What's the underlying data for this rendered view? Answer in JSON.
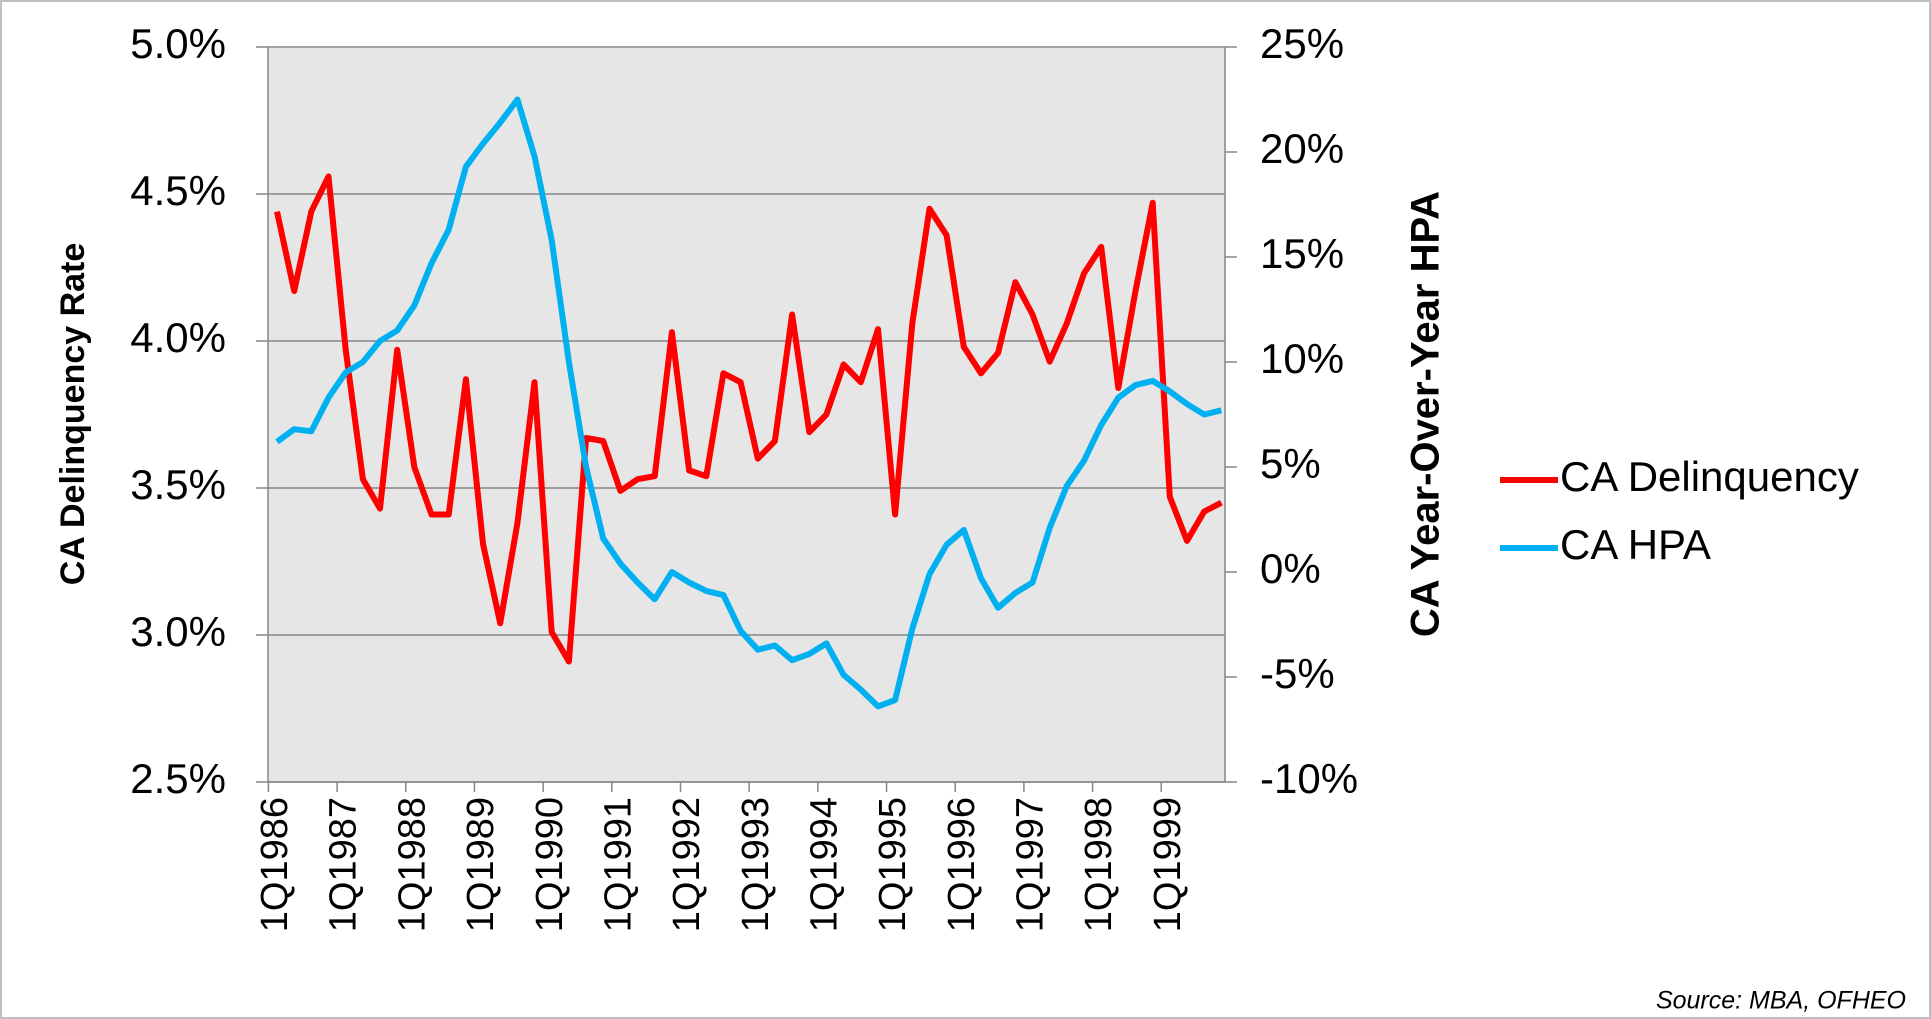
{
  "chart_data": {
    "type": "line",
    "y_label": "CA Delinquency Rate",
    "y2_label": "CA Year-Over-Year HPA",
    "source": "Source: MBA, OFHEO",
    "categories": [
      "1Q1986",
      null,
      null,
      null,
      "1Q1987",
      null,
      null,
      null,
      "1Q1988",
      null,
      null,
      null,
      "1Q1989",
      null,
      null,
      null,
      "1Q1990",
      null,
      null,
      null,
      "1Q1991",
      null,
      null,
      null,
      "1Q1992",
      null,
      null,
      null,
      "1Q1993",
      null,
      null,
      null,
      "1Q1994",
      null,
      null,
      null,
      "1Q1995",
      null,
      null,
      null,
      "1Q1996",
      null,
      null,
      null,
      "1Q1997",
      null,
      null,
      null,
      "1Q1998",
      null,
      null,
      null,
      "1Q1999",
      null,
      null,
      null
    ],
    "ylim": [
      2.5,
      5.0
    ],
    "yticks": [
      {
        "value": 2.5,
        "label": "2.5%"
      },
      {
        "value": 3.0,
        "label": "3.0%"
      },
      {
        "value": 3.5,
        "label": "3.5%"
      },
      {
        "value": 4.0,
        "label": "4.0%"
      },
      {
        "value": 4.5,
        "label": "4.5%"
      },
      {
        "value": 5.0,
        "label": "5.0%"
      }
    ],
    "y2lim": [
      -10,
      25
    ],
    "y2ticks": [
      {
        "value": -10,
        "label": "-10%"
      },
      {
        "value": -5,
        "label": "-5%"
      },
      {
        "value": 0,
        "label": "0%"
      },
      {
        "value": 5,
        "label": "5%"
      },
      {
        "value": 10,
        "label": "10%"
      },
      {
        "value": 15,
        "label": "15%"
      },
      {
        "value": 20,
        "label": "20%"
      },
      {
        "value": 25,
        "label": "25%"
      }
    ],
    "grid": true,
    "legend": "right",
    "series": [
      {
        "name": "CA Delinquency",
        "color": "#ff0000",
        "axis": "y",
        "values": [
          4.44,
          4.17,
          4.44,
          4.56,
          3.97,
          3.53,
          3.43,
          3.97,
          3.57,
          3.41,
          3.41,
          3.87,
          3.31,
          3.04,
          3.38,
          3.86,
          3.01,
          2.91,
          3.67,
          3.66,
          3.49,
          3.53,
          3.54,
          4.03,
          3.56,
          3.54,
          3.89,
          3.86,
          3.6,
          3.66,
          4.09,
          3.69,
          3.75,
          3.92,
          3.86,
          4.04,
          3.41,
          4.06,
          4.45,
          4.36,
          3.98,
          3.89,
          3.96,
          4.2,
          4.09,
          3.93,
          4.06,
          4.23,
          4.32,
          3.84,
          4.17,
          4.47,
          3.47,
          3.32,
          3.42,
          3.45
        ]
      },
      {
        "name": "CA HPA",
        "color": "#00b0f0",
        "axis": "y2",
        "values": [
          6.2,
          6.8,
          6.7,
          8.3,
          9.5,
          10,
          11,
          11.5,
          12.7,
          14.7,
          16.3,
          19.3,
          20.4,
          21.4,
          22.5,
          19.8,
          15.8,
          10,
          5,
          1.6,
          0.4,
          -0.5,
          -1.3,
          0,
          -0.5,
          -0.9,
          -1.1,
          -2.8,
          -3.7,
          -3.5,
          -4.2,
          -3.9,
          -3.4,
          -4.9,
          -5.6,
          -6.4,
          -6.1,
          -2.7,
          -0.1,
          1.3,
          2,
          -0.3,
          -1.7,
          -1,
          -0.5,
          2.1,
          4.1,
          5.3,
          7,
          8.3,
          8.9,
          9.1,
          8.6,
          8,
          7.5,
          7.7
        ]
      }
    ]
  }
}
